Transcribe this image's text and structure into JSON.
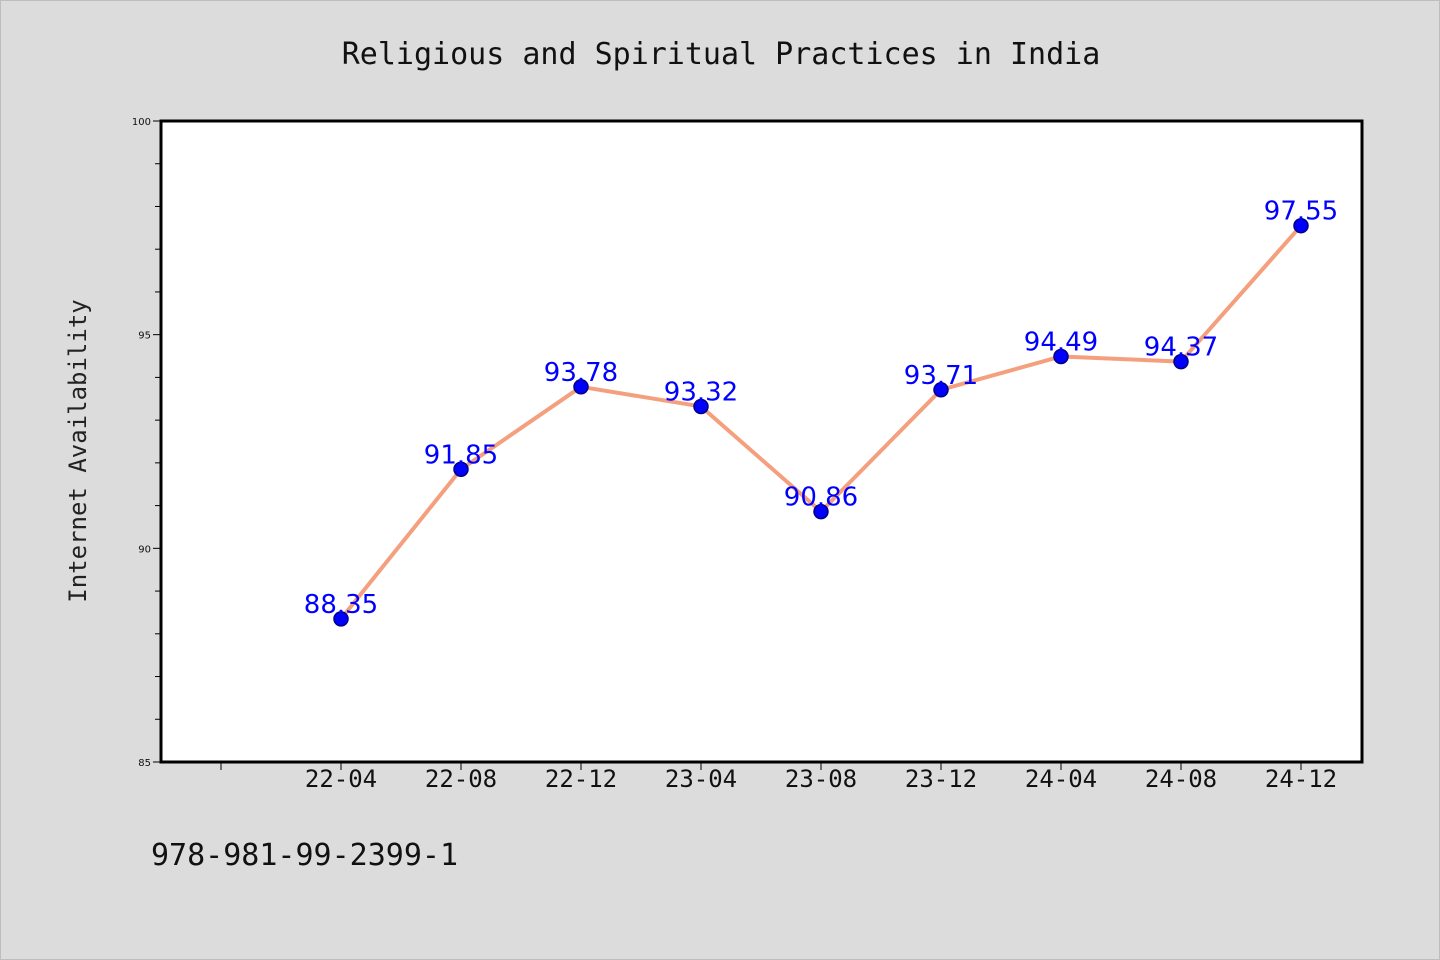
{
  "chart_data": {
    "type": "line",
    "title": "Religious and Spiritual Practices in India",
    "xlabel": "",
    "ylabel": "Internet Availability",
    "categories": [
      "22-04",
      "22-08",
      "22-12",
      "23-04",
      "23-08",
      "23-12",
      "24-04",
      "24-08",
      "24-12"
    ],
    "values": [
      88.35,
      91.85,
      93.78,
      93.32,
      90.86,
      93.71,
      94.49,
      94.37,
      97.55
    ],
    "data_labels": [
      "88.35",
      "91.85",
      "93.78",
      "93.32",
      "90.86",
      "93.71",
      "94.49",
      "94.37",
      "97.55"
    ],
    "ylim": [
      85,
      100
    ],
    "yticks": [
      85,
      90,
      95,
      100
    ],
    "ytick_labels": [
      "85",
      "90",
      "95",
      "100"
    ],
    "grid": false,
    "legend": "none",
    "colors": {
      "line": "#f4a07e",
      "marker": "#0000ff",
      "marker_edge": "#000080",
      "data_label": "#0000ff",
      "plot_background": "#ffffff",
      "figure_background": "#dcdcdc"
    }
  },
  "footer": {
    "isbn": "978-981-99-2399-1"
  }
}
